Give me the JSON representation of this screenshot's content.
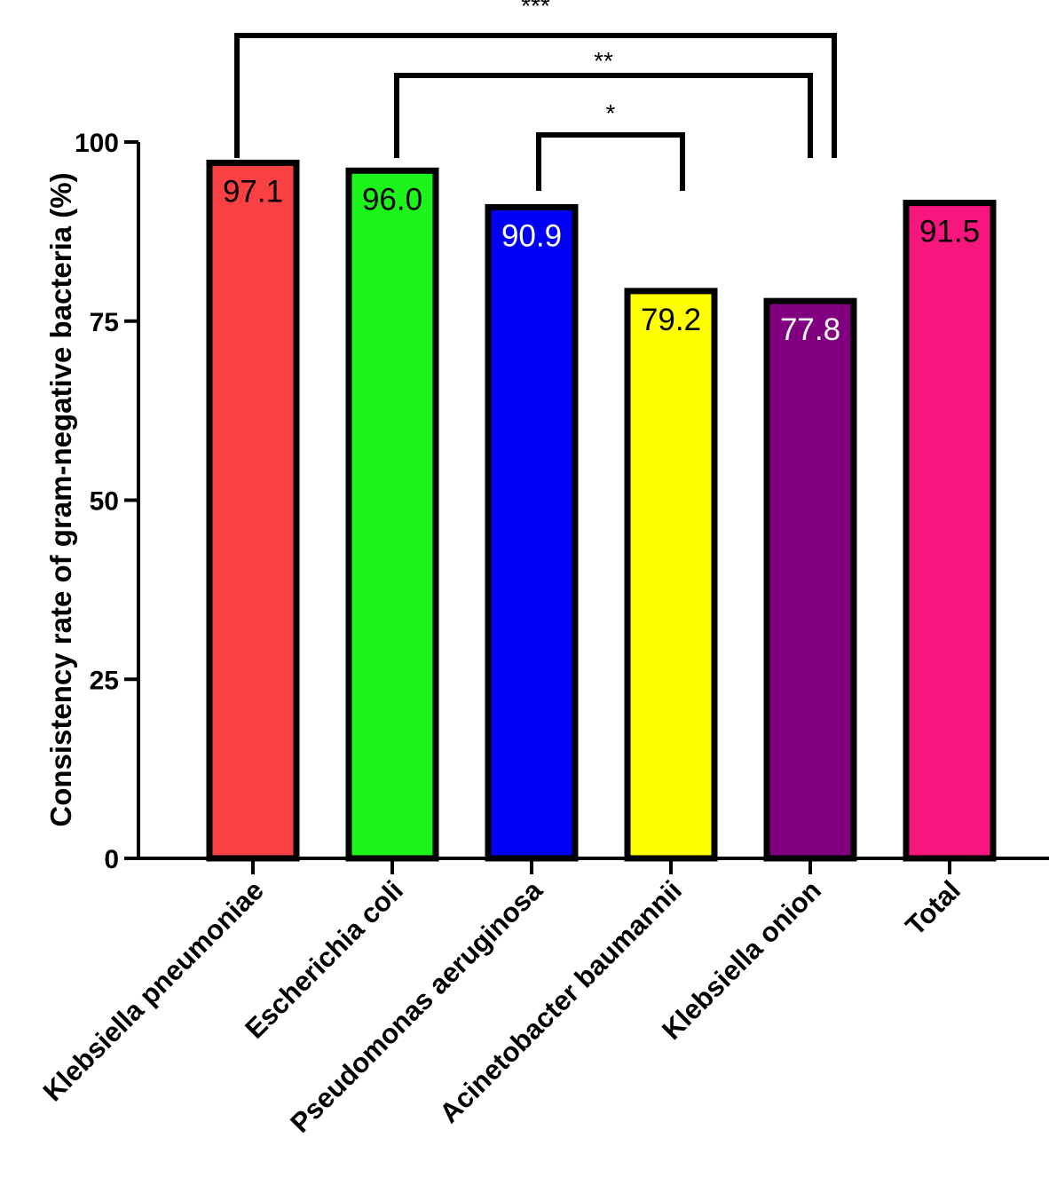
{
  "chart_data": {
    "type": "bar",
    "ylabel": "Consistency rate of gram-negative bacteria (%)",
    "xlabel": "",
    "ylim": [
      0,
      100
    ],
    "yticks": [
      0,
      25,
      50,
      75,
      100
    ],
    "grid": false,
    "categories": [
      "Klebsiella pneumoniae",
      "Escherichia coli",
      "Pseudomonas aeruginosa",
      "Acinetobacter baumannii",
      "Klebsiella onion",
      "Total"
    ],
    "values": [
      97.1,
      96.0,
      90.9,
      79.2,
      77.8,
      91.5
    ],
    "data_labels": [
      "97.1",
      "96.0",
      "90.9",
      "79.2",
      "77.8",
      "91.5"
    ],
    "colors": [
      "#f94144",
      "#1cf41c",
      "#0000f5",
      "#ffff00",
      "#800080",
      "#f7167d"
    ],
    "label_colors": [
      "#000000",
      "#000000",
      "#ffffff",
      "#000000",
      "#ffffff",
      "#000000"
    ],
    "significance": [
      {
        "from": 0,
        "to": 4,
        "label": "***"
      },
      {
        "from": 1,
        "to": 4,
        "label": "**"
      },
      {
        "from": 2,
        "to": 3,
        "label": "*"
      }
    ]
  }
}
